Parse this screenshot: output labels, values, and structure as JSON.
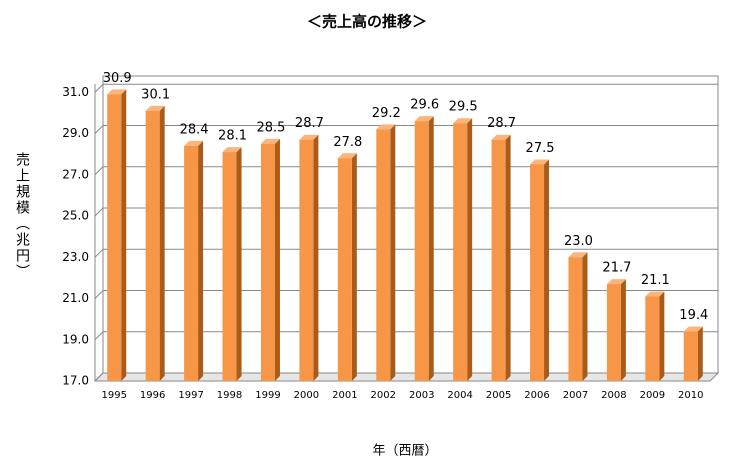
{
  "chart_data": {
    "type": "bar",
    "title": "＜売上高の推移＞",
    "y_label": "売上規模（兆円）",
    "x_label": "年（西暦）",
    "categories": [
      "1995",
      "1996",
      "1997",
      "1998",
      "1999",
      "2000",
      "2001",
      "2002",
      "2003",
      "2004",
      "2005",
      "2006",
      "2007",
      "2008",
      "2009",
      "2010"
    ],
    "values": [
      30.9,
      30.1,
      28.4,
      28.1,
      28.5,
      28.7,
      27.8,
      29.2,
      29.6,
      29.5,
      28.7,
      27.5,
      23.0,
      21.7,
      21.1,
      19.4
    ],
    "value_labels": [
      "30.9",
      "30.1",
      "28.4",
      "28.1",
      "28.5",
      "28.7",
      "27.8",
      "29.2",
      "29.6",
      "29.5",
      "28.7",
      "27.5",
      "23.0",
      "21.7",
      "21.1",
      "19.4"
    ],
    "color": "#f79646",
    "ylim": [
      17,
      31.4
    ],
    "yticks": [
      {
        "value": 17,
        "label": "17.0"
      },
      {
        "value": 19,
        "label": "19.0"
      },
      {
        "value": 21,
        "label": "21.0"
      },
      {
        "value": 23,
        "label": "23.0"
      },
      {
        "value": 25,
        "label": "25.0"
      },
      {
        "value": 27,
        "label": "27.0"
      },
      {
        "value": 29,
        "label": "29.0"
      },
      {
        "value": 31,
        "label": "31.0"
      }
    ],
    "grid": true
  }
}
